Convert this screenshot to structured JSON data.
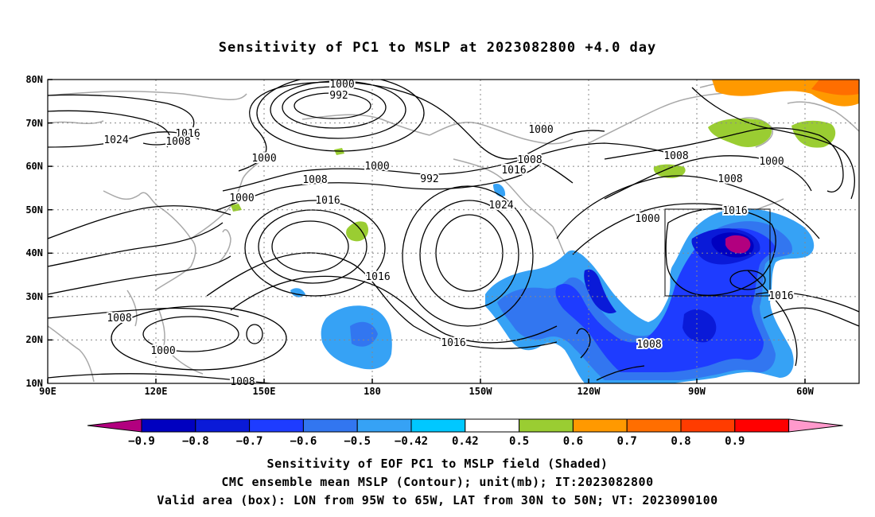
{
  "title": "Sensitivity of PC1 to MSLP at 2023082800 +4.0 day",
  "axes": {
    "lat_labels": [
      "80N",
      "70N",
      "60N",
      "50N",
      "40N",
      "30N",
      "20N",
      "10N"
    ],
    "lon_labels": [
      "90E",
      "120E",
      "150E",
      "180",
      "150W",
      "120W",
      "90W",
      "60W"
    ]
  },
  "contour_labels": [
    "1000",
    "992",
    "1000",
    "1016",
    "1024",
    "1008",
    "1000",
    "1000",
    "1000",
    "992",
    "1008",
    "1016",
    "1008",
    "1000",
    "1016",
    "1024",
    "1016",
    "1016",
    "1008",
    "1000",
    "1008",
    "1008",
    "1000",
    "1016",
    "1016",
    "1008",
    "1016",
    "1000",
    "1008"
  ],
  "colorbar": {
    "labels": [
      "−0.9",
      "−0.8",
      "−0.7",
      "−0.6",
      "−0.5",
      "−0.42",
      "0.42",
      "0.5",
      "0.6",
      "0.7",
      "0.8",
      "0.9"
    ],
    "colors": [
      "#b2007f",
      "#0000c0",
      "#0a1ad8",
      "#1e3cff",
      "#3276f0",
      "#36a2f5",
      "#00c8ff",
      "#ffffff",
      "#9acd32",
      "#ff9900",
      "#ff6e00",
      "#ff3c00",
      "#ff0000",
      "#ff99cc"
    ]
  },
  "valid_box": {
    "lon_from": "95W",
    "lon_to": "65W",
    "lat_from": "30N",
    "lat_to": "50N"
  },
  "caption": {
    "line1": "Sensitivity of EOF PC1 to MSLP field (Shaded)",
    "line2": "CMC ensemble mean MSLP (Contour); unit(mb); IT:2023082800",
    "line3": "Valid area (box): LON from 95W to 65W, LAT from 30N to 50N; VT: 2023090100"
  }
}
